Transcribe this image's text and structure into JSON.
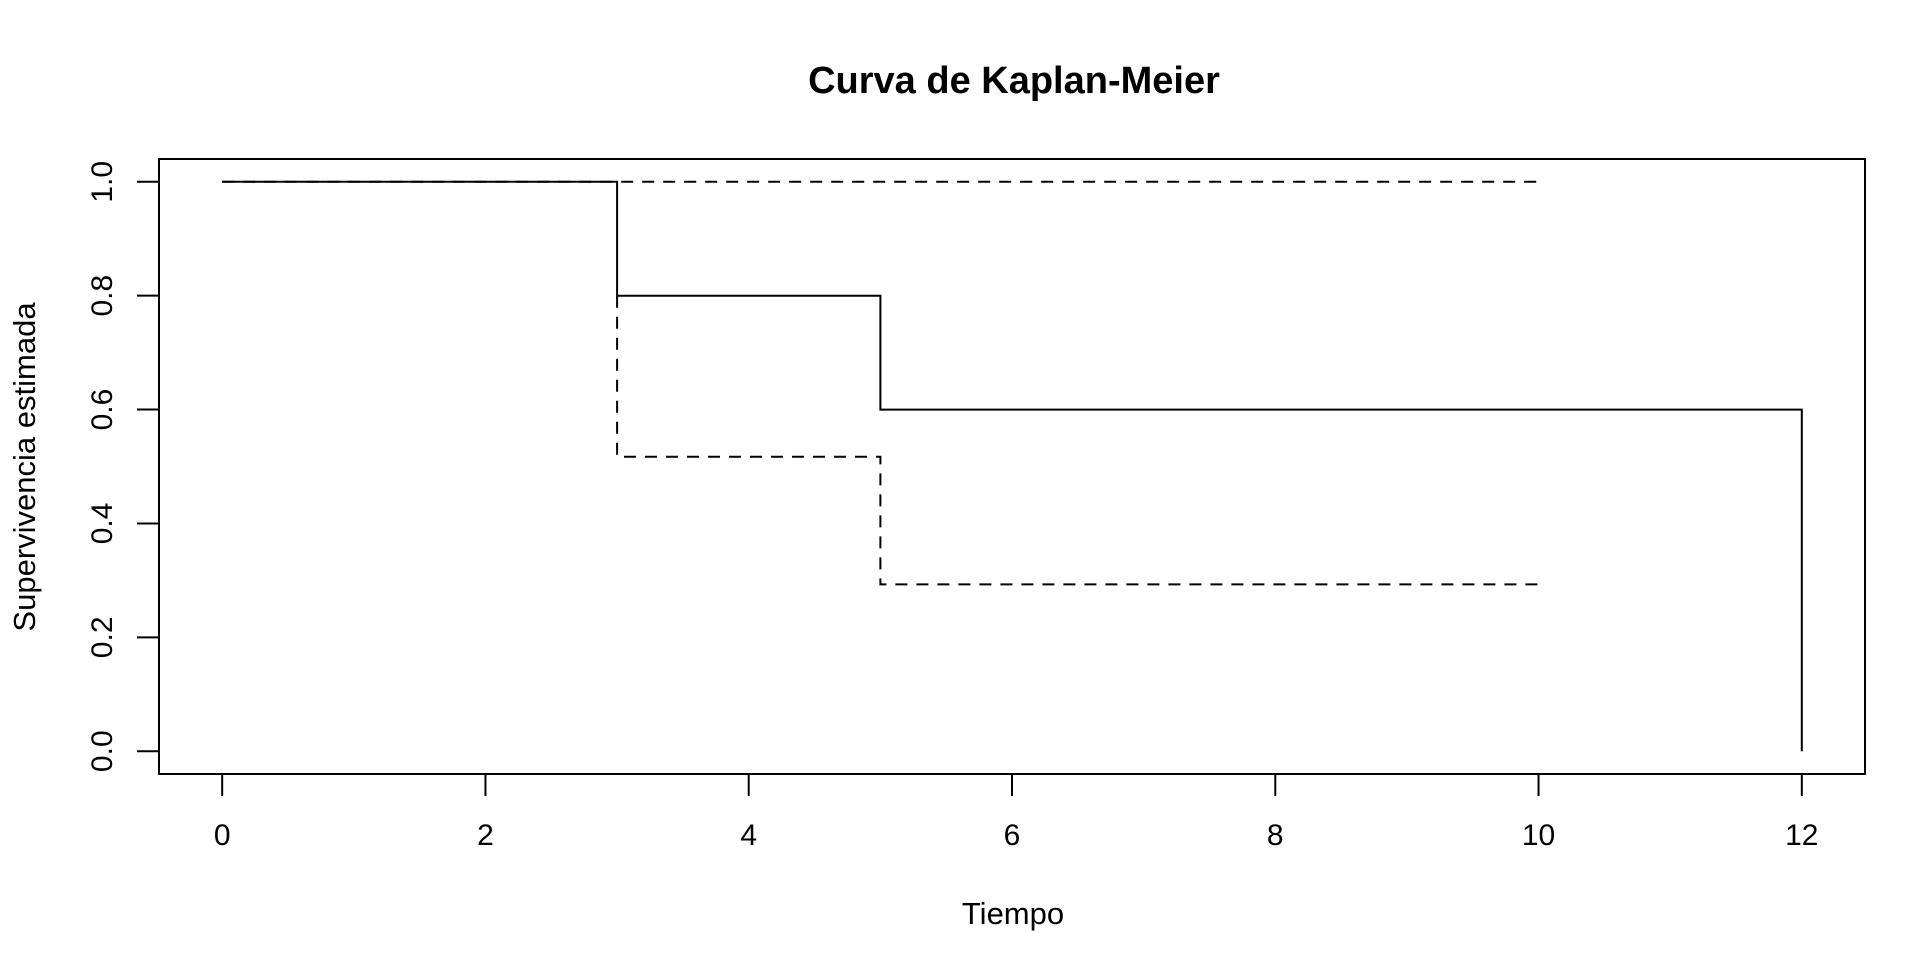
{
  "chart_data": {
    "type": "line",
    "title": "Curva de Kaplan-Meier",
    "xlabel": "Tiempo",
    "ylabel": "Supervivencia estimada",
    "xlim": [
      -0.48,
      12.48
    ],
    "ylim": [
      -0.04,
      1.04
    ],
    "x_ticks": [
      0,
      2,
      4,
      6,
      8,
      10,
      12
    ],
    "x_tick_labels": [
      "0",
      "2",
      "4",
      "6",
      "8",
      "10",
      "12"
    ],
    "y_ticks": [
      0.0,
      0.2,
      0.4,
      0.6,
      0.8,
      1.0
    ],
    "y_tick_labels": [
      "0.0",
      "0.2",
      "0.4",
      "0.6",
      "0.8",
      "1.0"
    ],
    "grid": false,
    "series": [
      {
        "style": "solid",
        "step": true,
        "points": [
          [
            0,
            1.0
          ],
          [
            3,
            1.0
          ],
          [
            3,
            0.8
          ],
          [
            5,
            0.8
          ],
          [
            5,
            0.6
          ],
          [
            12,
            0.6
          ],
          [
            12,
            0.0
          ]
        ]
      },
      {
        "style": "dashed",
        "step": true,
        "points": [
          [
            0,
            1.0
          ],
          [
            10,
            1.0
          ]
        ]
      },
      {
        "style": "dashed",
        "step": true,
        "points": [
          [
            3,
            0.8
          ],
          [
            3,
            0.517
          ],
          [
            5,
            0.517
          ],
          [
            5,
            0.293
          ],
          [
            10,
            0.293
          ]
        ]
      }
    ]
  }
}
